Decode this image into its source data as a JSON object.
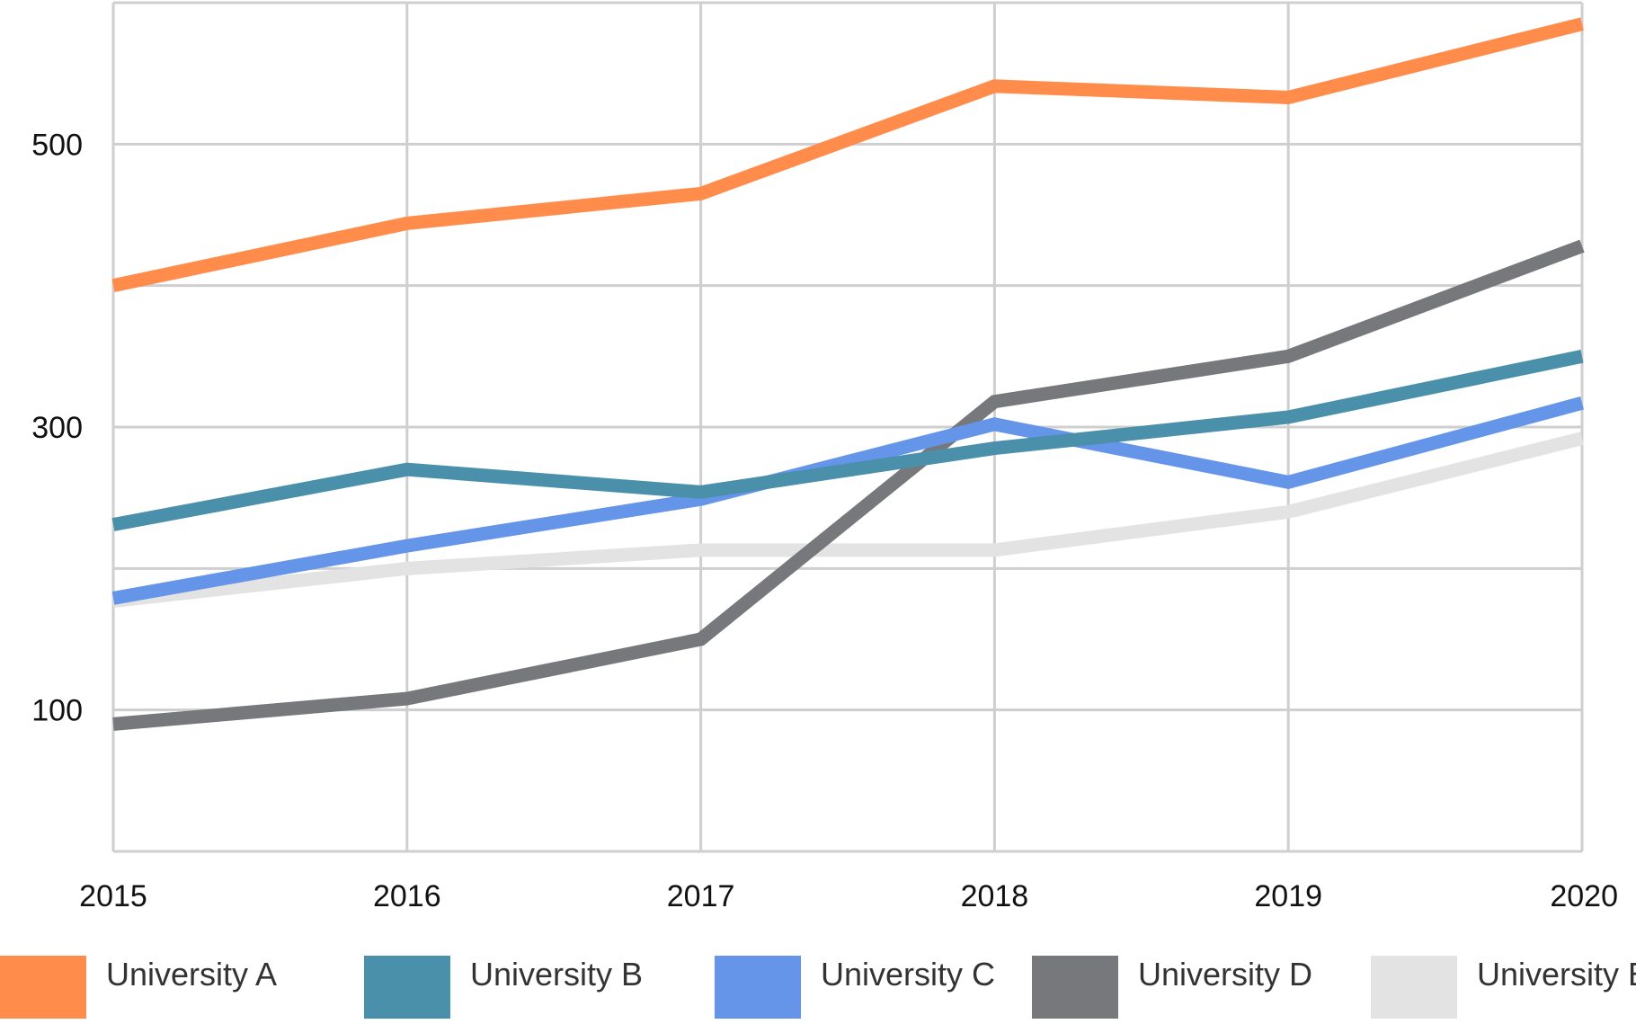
{
  "chart_data": {
    "type": "line",
    "x": [
      "2015",
      "2016",
      "2017",
      "2018",
      "2019",
      "2020"
    ],
    "ylim": [
      0,
      600
    ],
    "yticks": [
      "100",
      "300",
      "500"
    ],
    "grid": true,
    "legend_position": "bottom",
    "series": [
      {
        "name": "University A",
        "color": "#ff8c4a",
        "values": [
          400,
          444,
          465,
          541,
          533,
          585
        ]
      },
      {
        "name": "University B",
        "color": "#4a90aa",
        "values": [
          231,
          270,
          254,
          285,
          307,
          350
        ]
      },
      {
        "name": "University C",
        "color": "#6495e8",
        "values": [
          179,
          216,
          249,
          302,
          261,
          317
        ]
      },
      {
        "name": "University D",
        "color": "#77787b",
        "values": [
          90,
          108,
          150,
          318,
          350,
          428
        ]
      },
      {
        "name": "University E",
        "color": "#e3e3e3",
        "values": [
          177,
          200,
          213,
          213,
          240,
          292
        ]
      }
    ]
  }
}
